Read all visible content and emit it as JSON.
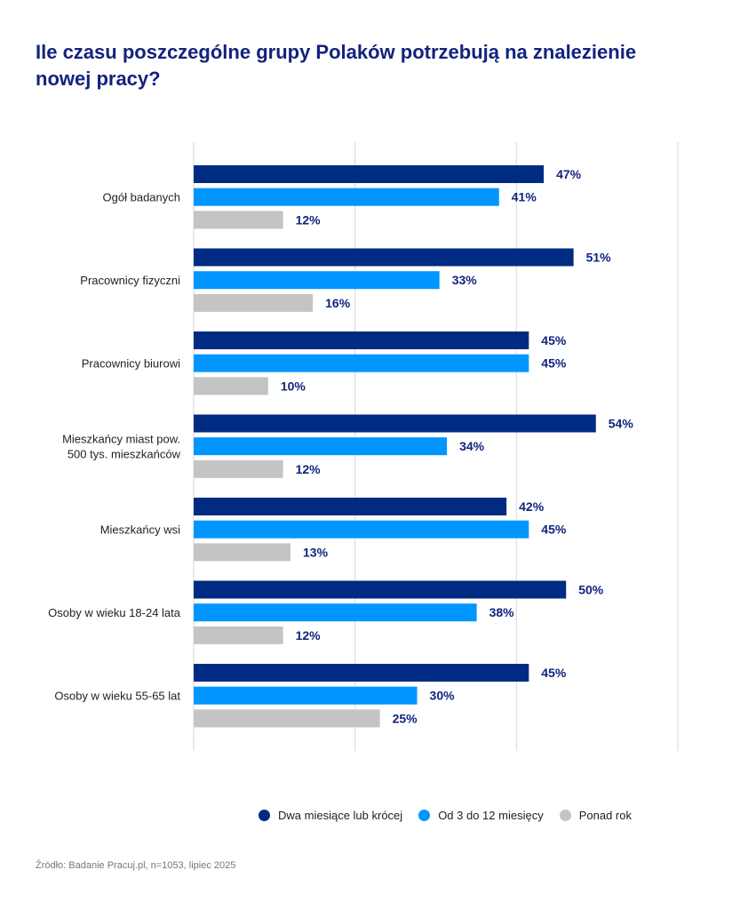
{
  "chart_data": {
    "type": "bar",
    "orientation": "horizontal",
    "title": "Ile czasu poszczególne grupy Polaków potrzebują na znalezienie nowej pracy?",
    "categories": [
      "Ogół badanych",
      "Pracownicy fizyczni",
      "Pracownicy biurowi",
      "Mieszkańcy miast pow. 500 tys. mieszkańców",
      "Mieszkańcy wsi",
      "Osoby w wieku 18-24 lata",
      "Osoby w wieku 55-65 lat"
    ],
    "category_lines": [
      [
        "Ogół badanych"
      ],
      [
        "Pracownicy fizyczni"
      ],
      [
        "Pracownicy biurowi"
      ],
      [
        "Mieszkańcy miast pow.",
        "500 tys. mieszkańców"
      ],
      [
        "Mieszkańcy wsi"
      ],
      [
        "Osoby w wieku 18-24 lata"
      ],
      [
        "Osoby w wieku 55-65 lat"
      ]
    ],
    "series": [
      {
        "name": "Dwa miesiące lub krócej",
        "color": "#002b82",
        "values": [
          47,
          51,
          45,
          54,
          42,
          50,
          45
        ]
      },
      {
        "name": "Od 3 do 12 miesięcy",
        "color": "#0096ff",
        "values": [
          41,
          33,
          45,
          34,
          45,
          38,
          30
        ]
      },
      {
        "name": "Ponad rok",
        "color": "#c4c4c4",
        "values": [
          12,
          16,
          10,
          12,
          13,
          12,
          25
        ]
      }
    ],
    "value_suffix": "%",
    "xlim": [
      0,
      65
    ],
    "grid": true,
    "legend": "bottom",
    "label_color": "#12237e"
  },
  "source": "Źródło: Badanie Pracuj.pl, n=1053, lipiec 2025"
}
